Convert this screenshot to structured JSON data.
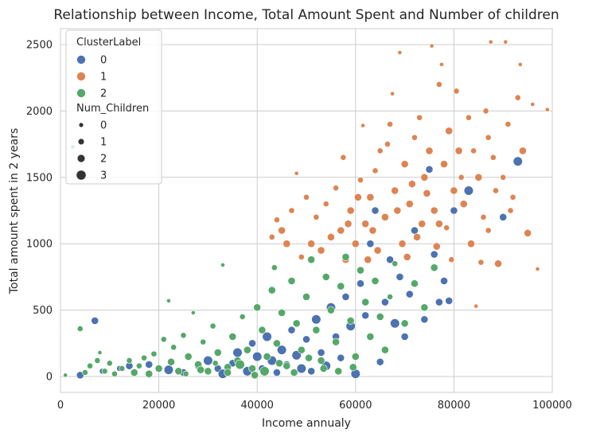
{
  "chart_data": {
    "type": "scatter",
    "title": "Relationship between Income, Total Amount Spent and Number of children",
    "xlabel": "Income annualy",
    "ylabel": "Total amount spent in 2 years",
    "xlim": [
      0,
      100000
    ],
    "ylim": [
      -120,
      2620
    ],
    "xticks": [
      0,
      20000,
      40000,
      60000,
      80000,
      100000
    ],
    "yticks": [
      0,
      500,
      1000,
      1500,
      2000,
      2500
    ],
    "grid": true,
    "legend_position": "top-left",
    "legend": {
      "hue_title": "ClusterLabel",
      "hue_entries": [
        {
          "label": "0",
          "color": "#4c72b0"
        },
        {
          "label": "1",
          "color": "#dd8452"
        },
        {
          "label": "2",
          "color": "#55a868"
        }
      ],
      "size_title": "Num_Children",
      "size_entries": [
        "0",
        "1",
        "2",
        "3"
      ]
    },
    "series": [
      {
        "name": "0",
        "color": "#4c72b0",
        "points": [
          [
            4000,
            10,
            2
          ],
          [
            7000,
            420,
            2
          ],
          [
            8500,
            40,
            1
          ],
          [
            12000,
            60,
            1
          ],
          [
            14000,
            80,
            2
          ],
          [
            18000,
            90,
            2
          ],
          [
            22000,
            50,
            3
          ],
          [
            25000,
            30,
            2
          ],
          [
            28000,
            80,
            2
          ],
          [
            30000,
            120,
            3
          ],
          [
            32000,
            60,
            2
          ],
          [
            33000,
            20,
            3
          ],
          [
            35000,
            100,
            2
          ],
          [
            36000,
            180,
            3
          ],
          [
            38000,
            40,
            3
          ],
          [
            39000,
            250,
            2
          ],
          [
            40000,
            150,
            3
          ],
          [
            41000,
            60,
            2
          ],
          [
            42000,
            300,
            3
          ],
          [
            43000,
            120,
            3
          ],
          [
            44000,
            30,
            2
          ],
          [
            45000,
            200,
            3
          ],
          [
            46000,
            90,
            2
          ],
          [
            47000,
            350,
            2
          ],
          [
            48000,
            160,
            3
          ],
          [
            49000,
            60,
            3
          ],
          [
            50000,
            280,
            2
          ],
          [
            51000,
            40,
            2
          ],
          [
            52000,
            430,
            3
          ],
          [
            53000,
            180,
            2
          ],
          [
            54000,
            80,
            3
          ],
          [
            55000,
            520,
            3
          ],
          [
            56000,
            300,
            2
          ],
          [
            57000,
            140,
            2
          ],
          [
            58000,
            600,
            2
          ],
          [
            59000,
            380,
            3
          ],
          [
            60000,
            20,
            3
          ],
          [
            61000,
            700,
            2
          ],
          [
            62000,
            460,
            2
          ],
          [
            63000,
            1000,
            2
          ],
          [
            64000,
            1250,
            2
          ],
          [
            65000,
            110,
            2
          ],
          [
            66000,
            560,
            2
          ],
          [
            67000,
            880,
            2
          ],
          [
            68000,
            400,
            3
          ],
          [
            69000,
            750,
            2
          ],
          [
            70000,
            300,
            2
          ],
          [
            71000,
            620,
            2
          ],
          [
            72000,
            1100,
            2
          ],
          [
            74000,
            430,
            2
          ],
          [
            75000,
            1560,
            2
          ],
          [
            76000,
            920,
            2
          ],
          [
            77000,
            560,
            2
          ],
          [
            78000,
            720,
            2
          ],
          [
            79000,
            570,
            2
          ],
          [
            80000,
            1250,
            2
          ],
          [
            83000,
            1400,
            3
          ],
          [
            93000,
            1620,
            3
          ],
          [
            90000,
            1200,
            2
          ]
        ]
      },
      {
        "name": "1",
        "color": "#dd8452",
        "points": [
          [
            43000,
            1050,
            1
          ],
          [
            44000,
            1180,
            1
          ],
          [
            45000,
            1100,
            2
          ],
          [
            46000,
            1000,
            2
          ],
          [
            47000,
            1250,
            1
          ],
          [
            48000,
            1530,
            0
          ],
          [
            49000,
            900,
            1
          ],
          [
            50000,
            1350,
            1
          ],
          [
            51000,
            1000,
            2
          ],
          [
            52000,
            1200,
            1
          ],
          [
            53000,
            950,
            2
          ],
          [
            54000,
            1300,
            1
          ],
          [
            55000,
            1050,
            2
          ],
          [
            56000,
            1420,
            1
          ],
          [
            57000,
            1100,
            2
          ],
          [
            57500,
            1650,
            1
          ],
          [
            58000,
            880,
            2
          ],
          [
            59000,
            1250,
            2
          ],
          [
            60000,
            1000,
            2
          ],
          [
            61000,
            1480,
            1
          ],
          [
            61500,
            1890,
            0
          ],
          [
            62000,
            1150,
            2
          ],
          [
            63000,
            1350,
            2
          ],
          [
            64000,
            1550,
            1
          ],
          [
            64500,
            950,
            2
          ],
          [
            65000,
            1700,
            1
          ],
          [
            66000,
            1200,
            2
          ],
          [
            67000,
            1900,
            1
          ],
          [
            67500,
            2130,
            0
          ],
          [
            68000,
            1400,
            2
          ],
          [
            69000,
            2440,
            0
          ],
          [
            69500,
            1000,
            2
          ],
          [
            70000,
            1600,
            2
          ],
          [
            71000,
            1300,
            2
          ],
          [
            72000,
            1800,
            1
          ],
          [
            73000,
            1950,
            1
          ],
          [
            73500,
            1150,
            2
          ],
          [
            74000,
            1500,
            2
          ],
          [
            75000,
            1700,
            2
          ],
          [
            75500,
            2490,
            0
          ],
          [
            76000,
            1250,
            2
          ],
          [
            77000,
            2200,
            1
          ],
          [
            77500,
            2350,
            0
          ],
          [
            78000,
            1600,
            2
          ],
          [
            79000,
            1850,
            2
          ],
          [
            80000,
            1400,
            2
          ],
          [
            80500,
            2150,
            1
          ],
          [
            81000,
            1700,
            2
          ],
          [
            82000,
            1300,
            2
          ],
          [
            83000,
            1950,
            1
          ],
          [
            83500,
            1000,
            2
          ],
          [
            84000,
            1700,
            1
          ],
          [
            85000,
            1500,
            2
          ],
          [
            86000,
            1200,
            1
          ],
          [
            86500,
            2000,
            1
          ],
          [
            87000,
            1800,
            1
          ],
          [
            87500,
            2520,
            0
          ],
          [
            88000,
            1650,
            1
          ],
          [
            89000,
            850,
            2
          ],
          [
            90000,
            1500,
            1
          ],
          [
            90500,
            2520,
            0
          ],
          [
            91000,
            1900,
            1
          ],
          [
            92000,
            1350,
            1
          ],
          [
            93000,
            2100,
            1
          ],
          [
            93500,
            2350,
            0
          ],
          [
            94000,
            1700,
            2
          ],
          [
            95000,
            1080,
            2
          ],
          [
            96000,
            2050,
            0
          ],
          [
            97000,
            810,
            0
          ],
          [
            99000,
            2010,
            0
          ],
          [
            60500,
            1350,
            2
          ],
          [
            62500,
            880,
            2
          ],
          [
            66500,
            1750,
            1
          ],
          [
            70500,
            900,
            2
          ],
          [
            72500,
            1050,
            2
          ],
          [
            74500,
            1380,
            2
          ],
          [
            76500,
            980,
            2
          ],
          [
            78500,
            1120,
            1
          ],
          [
            79500,
            880,
            1
          ],
          [
            81500,
            1500,
            1
          ],
          [
            85500,
            860,
            1
          ],
          [
            87000,
            1100,
            1
          ],
          [
            88500,
            1400,
            1
          ],
          [
            91500,
            1250,
            1
          ],
          [
            84500,
            530,
            0
          ],
          [
            58500,
            1150,
            2
          ],
          [
            63500,
            1100,
            2
          ],
          [
            68500,
            1250,
            2
          ],
          [
            71500,
            1450,
            2
          ],
          [
            77000,
            1150,
            2
          ]
        ]
      },
      {
        "name": "2",
        "color": "#55a868",
        "points": [
          [
            1000,
            10,
            0
          ],
          [
            2500,
            1730,
            0
          ],
          [
            4000,
            360,
            1
          ],
          [
            5000,
            30,
            1
          ],
          [
            6000,
            80,
            1
          ],
          [
            7500,
            120,
            1
          ],
          [
            8000,
            180,
            0
          ],
          [
            9000,
            40,
            1
          ],
          [
            10000,
            100,
            1
          ],
          [
            11000,
            20,
            1
          ],
          [
            12500,
            60,
            1
          ],
          [
            14000,
            120,
            1
          ],
          [
            15000,
            30,
            2
          ],
          [
            16000,
            80,
            1
          ],
          [
            17000,
            140,
            1
          ],
          [
            18000,
            20,
            2
          ],
          [
            19000,
            170,
            1
          ],
          [
            20000,
            60,
            2
          ],
          [
            21000,
            280,
            1
          ],
          [
            22000,
            570,
            0
          ],
          [
            22500,
            110,
            2
          ],
          [
            23000,
            220,
            1
          ],
          [
            24000,
            40,
            2
          ],
          [
            25000,
            310,
            1
          ],
          [
            26000,
            150,
            2
          ],
          [
            27000,
            480,
            0
          ],
          [
            28000,
            90,
            2
          ],
          [
            29000,
            260,
            1
          ],
          [
            30000,
            40,
            2
          ],
          [
            31000,
            380,
            1
          ],
          [
            32000,
            180,
            2
          ],
          [
            33000,
            840,
            0
          ],
          [
            34000,
            70,
            2
          ],
          [
            35000,
            300,
            2
          ],
          [
            36000,
            120,
            2
          ],
          [
            37000,
            450,
            1
          ],
          [
            38000,
            200,
            2
          ],
          [
            39000,
            60,
            2
          ],
          [
            40000,
            520,
            2
          ],
          [
            41000,
            350,
            2
          ],
          [
            42000,
            150,
            2
          ],
          [
            43000,
            650,
            2
          ],
          [
            43500,
            820,
            1
          ],
          [
            44000,
            250,
            2
          ],
          [
            45000,
            480,
            2
          ],
          [
            46000,
            80,
            2
          ],
          [
            47000,
            720,
            2
          ],
          [
            48000,
            400,
            2
          ],
          [
            49000,
            200,
            2
          ],
          [
            50000,
            600,
            2
          ],
          [
            51000,
            880,
            2
          ],
          [
            52000,
            350,
            2
          ],
          [
            53000,
            120,
            2
          ],
          [
            54000,
            750,
            2
          ],
          [
            55000,
            500,
            2
          ],
          [
            56000,
            260,
            2
          ],
          [
            57000,
            680,
            2
          ],
          [
            58000,
            900,
            2
          ],
          [
            59000,
            420,
            2
          ],
          [
            60000,
            150,
            2
          ],
          [
            61000,
            800,
            2
          ],
          [
            62000,
            560,
            2
          ],
          [
            63000,
            300,
            2
          ],
          [
            64000,
            720,
            2
          ],
          [
            65000,
            450,
            2
          ],
          [
            66000,
            200,
            2
          ],
          [
            67000,
            600,
            1
          ],
          [
            68000,
            850,
            1
          ],
          [
            70000,
            400,
            2
          ],
          [
            72000,
            700,
            2
          ],
          [
            74000,
            520,
            2
          ],
          [
            76000,
            820,
            2
          ],
          [
            34000,
            30,
            2
          ],
          [
            36500,
            90,
            3
          ],
          [
            39500,
            10,
            2
          ],
          [
            41500,
            40,
            3
          ],
          [
            44500,
            100,
            2
          ],
          [
            47500,
            30,
            2
          ],
          [
            50500,
            140,
            2
          ],
          [
            53500,
            60,
            2
          ],
          [
            56500,
            40,
            2
          ],
          [
            59500,
            70,
            2
          ],
          [
            25500,
            20,
            1
          ],
          [
            28500,
            50,
            2
          ],
          [
            31500,
            100,
            1
          ]
        ]
      }
    ]
  }
}
